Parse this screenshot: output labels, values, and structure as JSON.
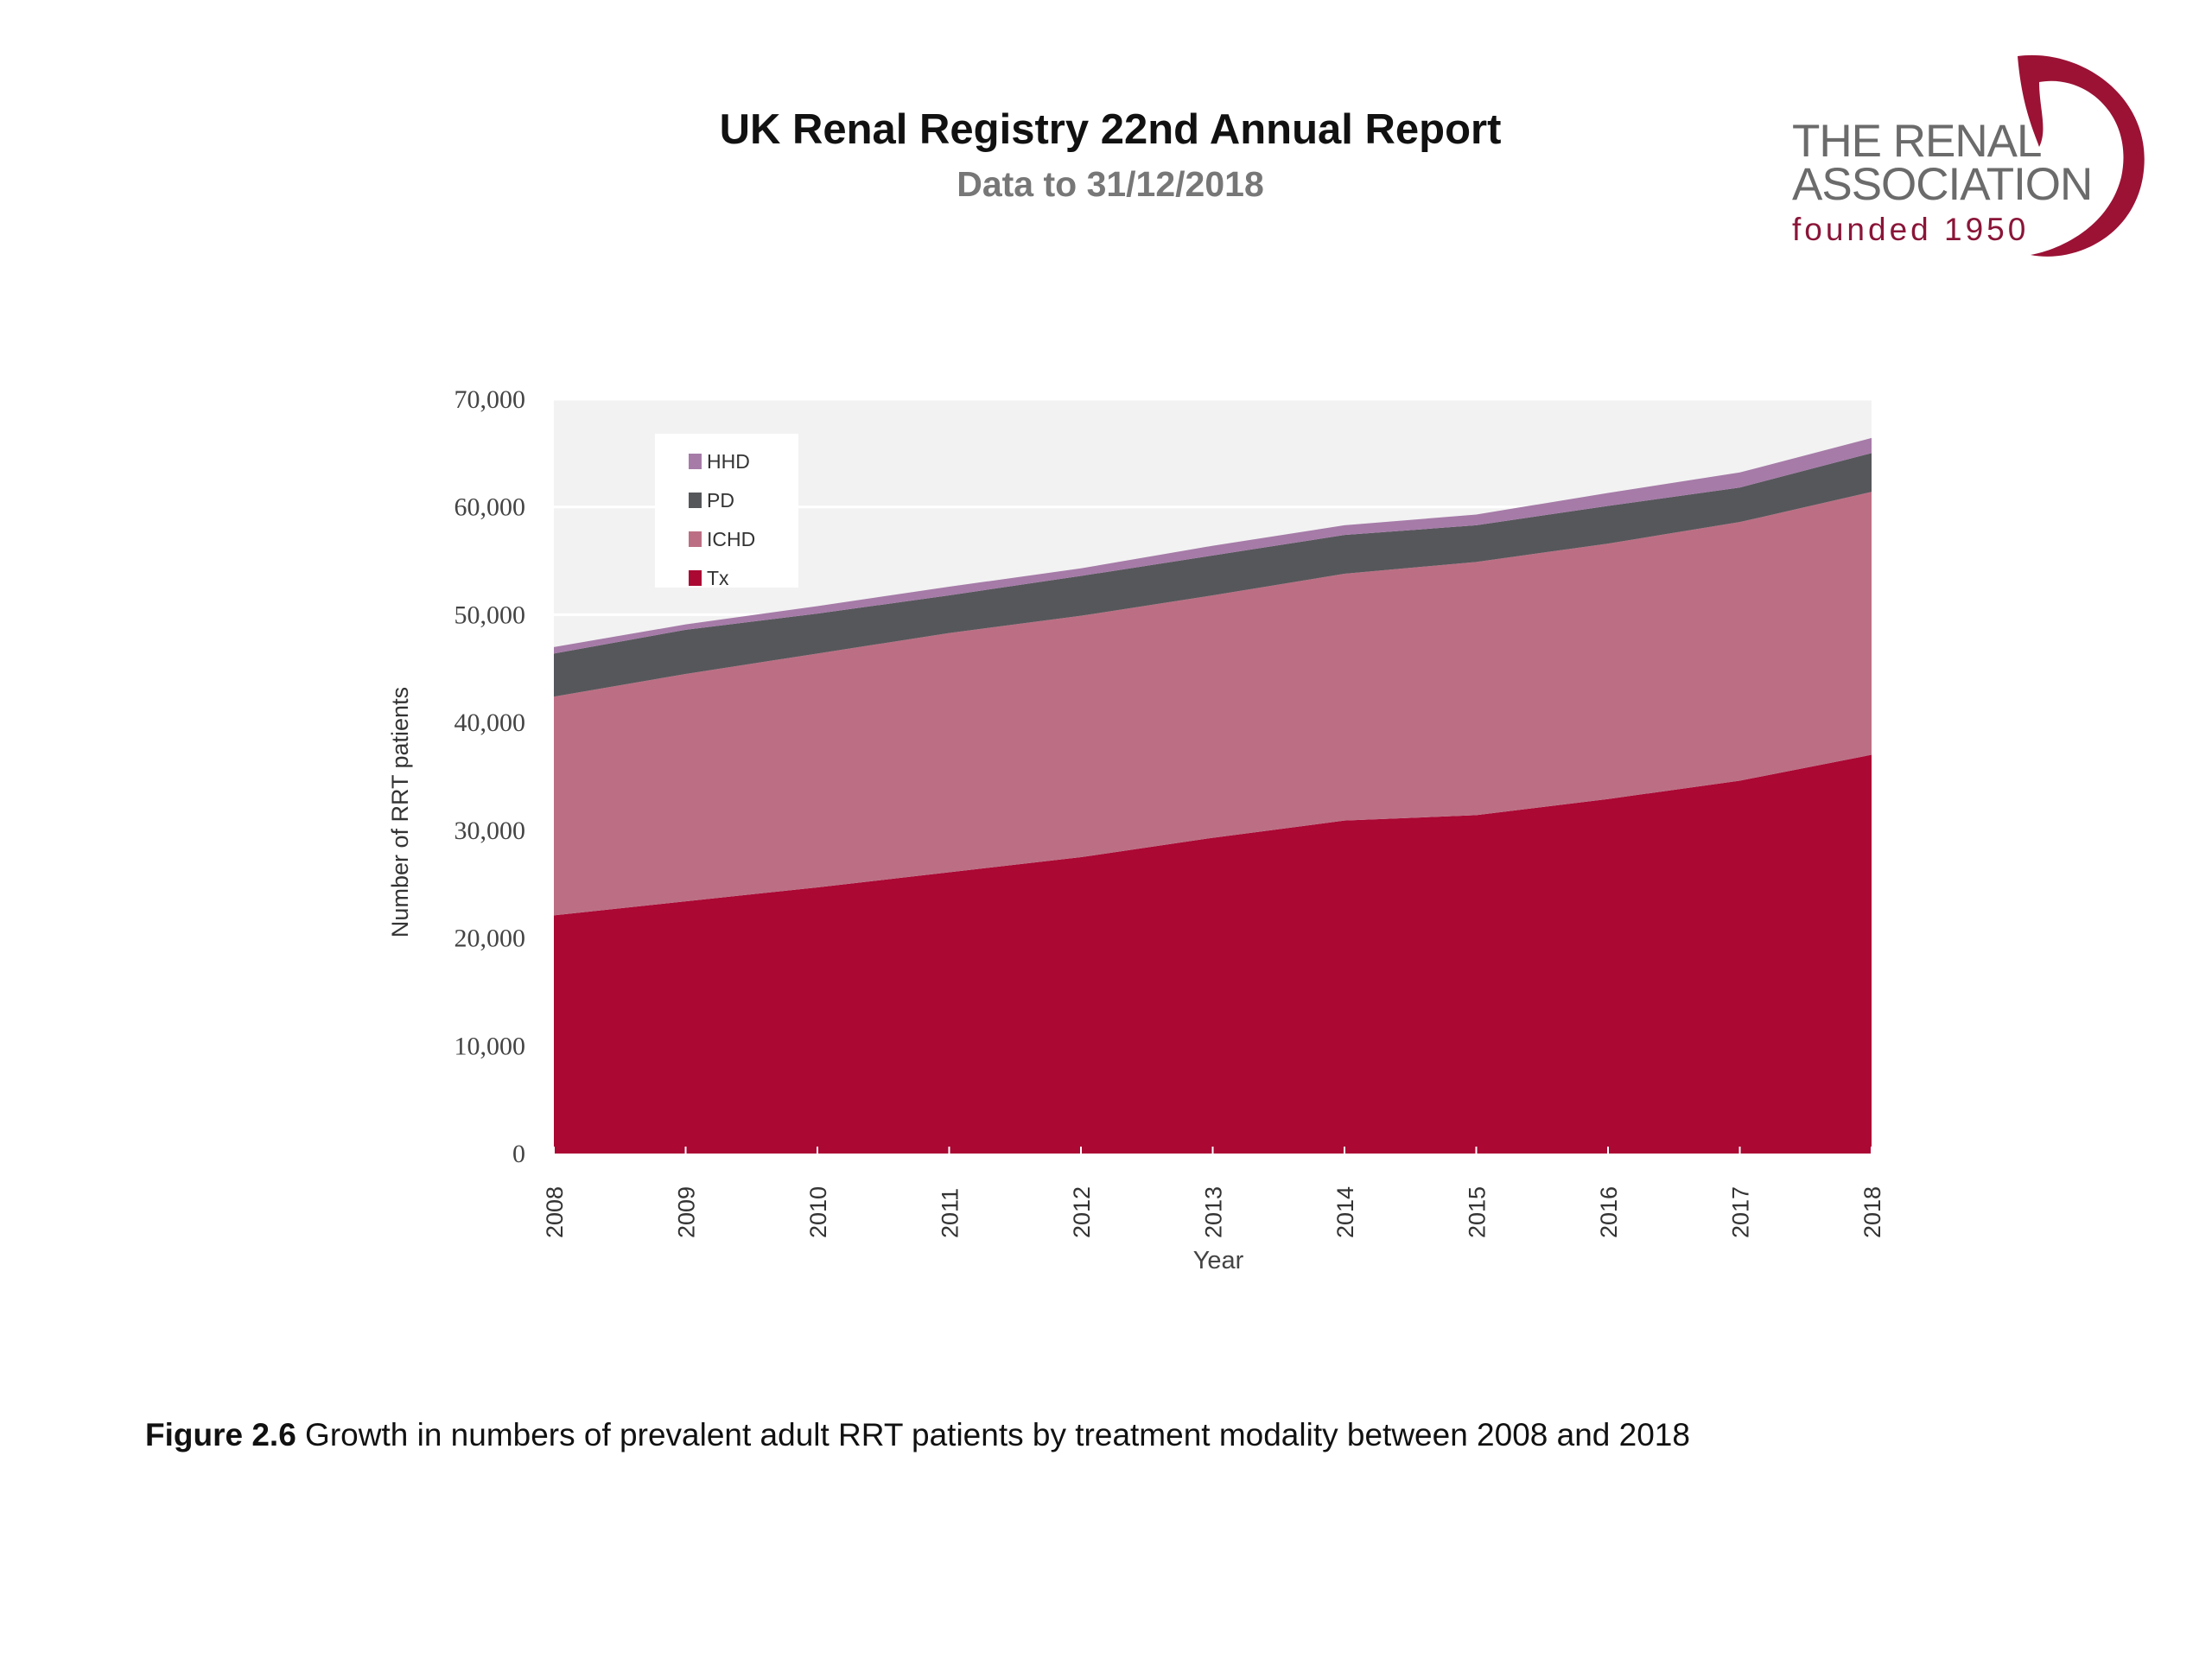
{
  "header": {
    "title": "UK Renal Registry 22nd Annual Report",
    "subtitle": "Data to 31/12/2018"
  },
  "logo": {
    "line1": "THE RENAL",
    "line2": "ASSOCIATION",
    "line3": "founded 1950",
    "icon": "kidney-swoosh-icon",
    "color": "#9b1235"
  },
  "caption": {
    "label": "Figure 2.6",
    "text": " Growth in numbers of prevalent adult RRT patients by treatment modality between 2008 and 2018"
  },
  "chart_data": {
    "type": "area",
    "stacked": true,
    "title": "",
    "xlabel": "Year",
    "ylabel": "Number of RRT patients",
    "x": [
      "2008",
      "2009",
      "2010",
      "2011",
      "2012",
      "2013",
      "2014",
      "2015",
      "2016",
      "2017",
      "2018"
    ],
    "ylim": [
      0,
      70000
    ],
    "yticks": [
      0,
      10000,
      20000,
      30000,
      40000,
      50000,
      60000,
      70000
    ],
    "ytick_labels": [
      "0",
      "10,000",
      "20,000",
      "30,000",
      "40,000",
      "50,000",
      "60,000",
      "70,000"
    ],
    "grid": true,
    "legend_position": "top-left",
    "legend_order": [
      "HHD",
      "PD",
      "ICHD",
      "Tx"
    ],
    "series": [
      {
        "name": "Tx",
        "color": "#ab0834",
        "values": [
          22100,
          23400,
          24700,
          26100,
          27500,
          29300,
          30900,
          31400,
          32900,
          34600,
          37000
        ]
      },
      {
        "name": "ICHD",
        "color": "#bc6f84",
        "values": [
          20300,
          21100,
          21700,
          22200,
          22400,
          22500,
          22900,
          23500,
          23700,
          24000,
          24400
        ]
      },
      {
        "name": "PD",
        "color": "#56575b",
        "values": [
          4000,
          4100,
          3700,
          3500,
          3700,
          3700,
          3600,
          3400,
          3500,
          3200,
          3600
        ]
      },
      {
        "name": "HHD",
        "color": "#a67ba8",
        "values": [
          600,
          500,
          700,
          800,
          700,
          900,
          900,
          1000,
          1200,
          1400,
          1400
        ]
      }
    ]
  }
}
